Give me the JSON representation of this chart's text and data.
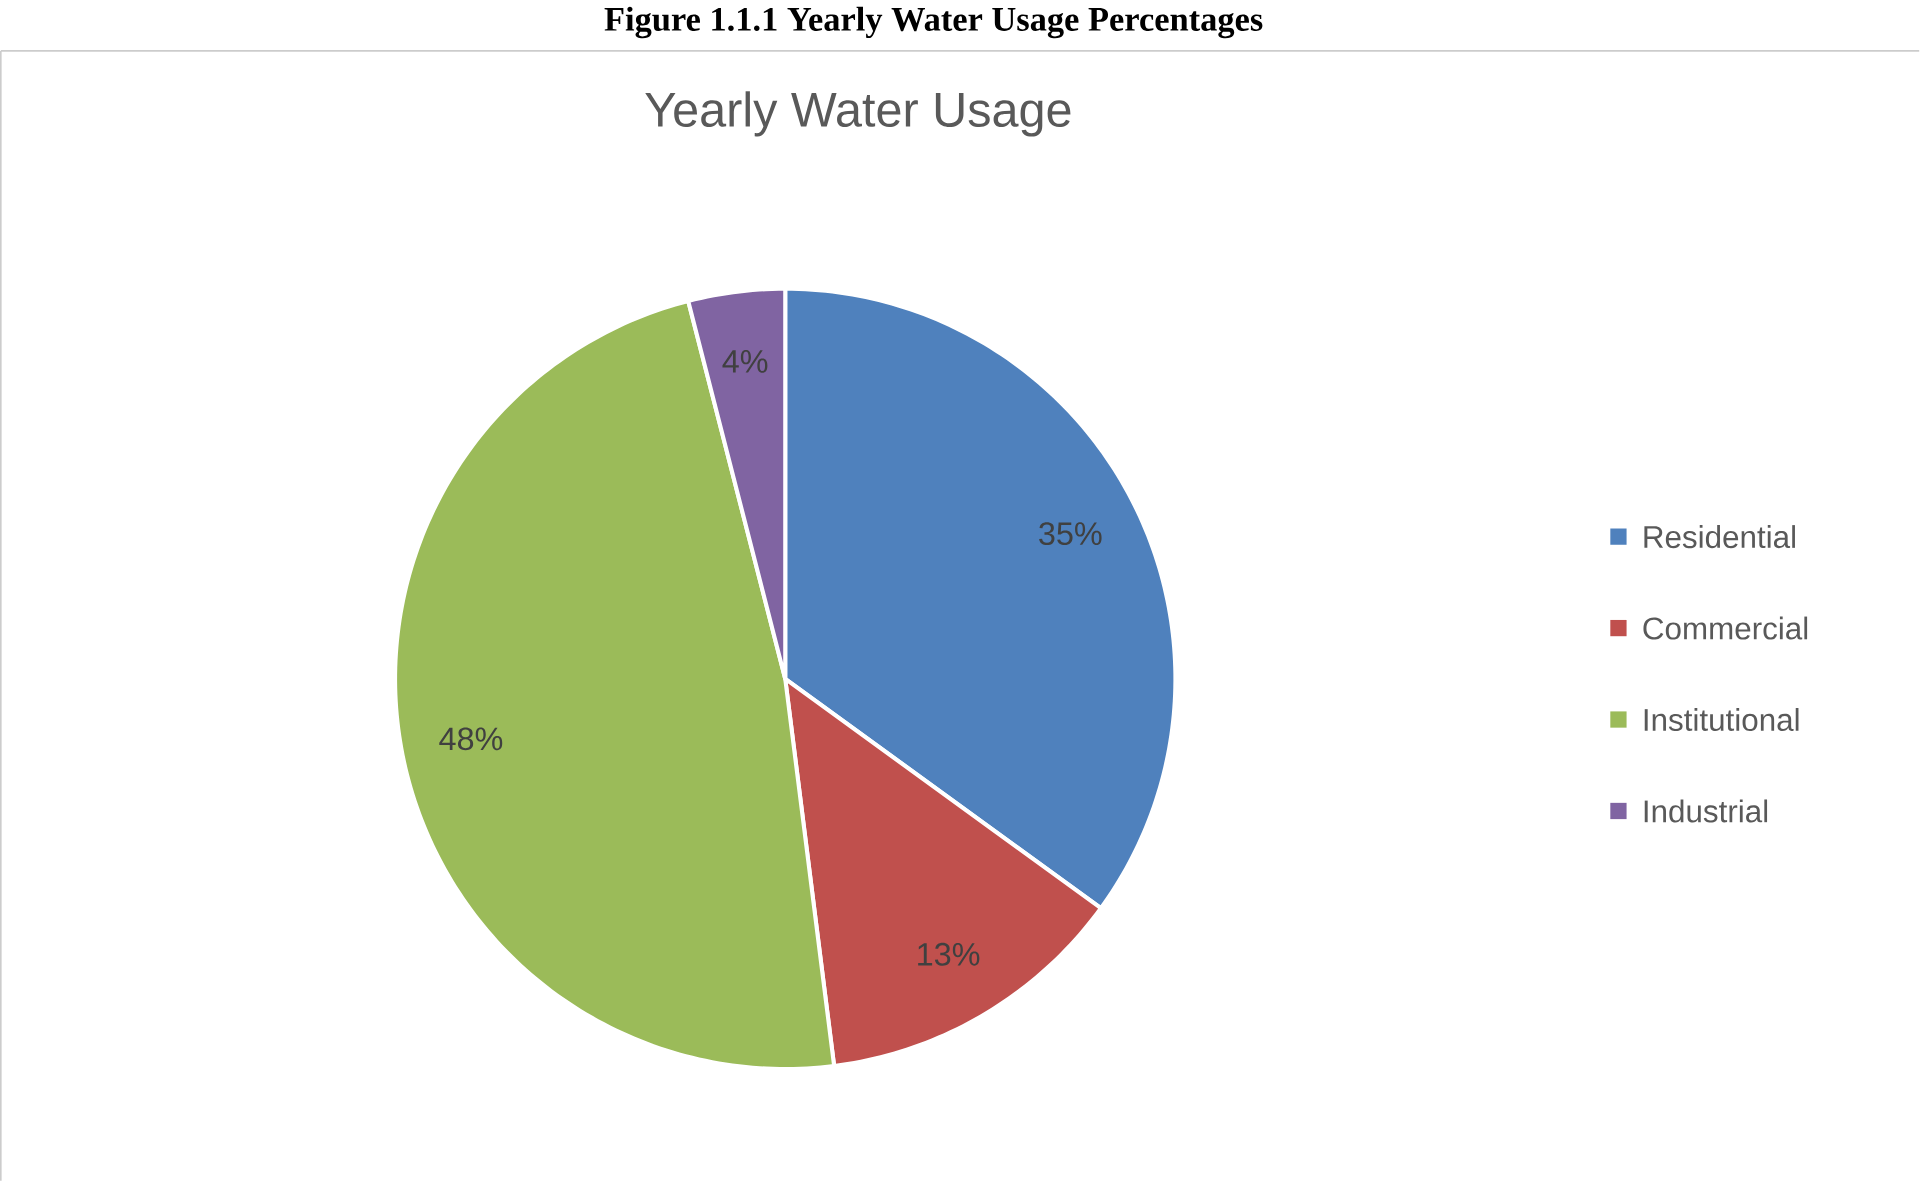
{
  "chart_data": {
    "type": "pie",
    "title": "Yearly Water Usage",
    "annotations": [
      "Figure 1.1.1 Yearly Water Usage Percentages"
    ],
    "categories": [
      "Residential",
      "Commercial",
      "Institutional",
      "Industrial"
    ],
    "values": [
      35,
      13,
      48,
      4
    ],
    "value_labels": [
      "35%",
      "13%",
      "48%",
      "4%"
    ],
    "colors": [
      "#4f81bd",
      "#c0504d",
      "#9bbb59",
      "#8064a2"
    ],
    "legend": "right"
  }
}
